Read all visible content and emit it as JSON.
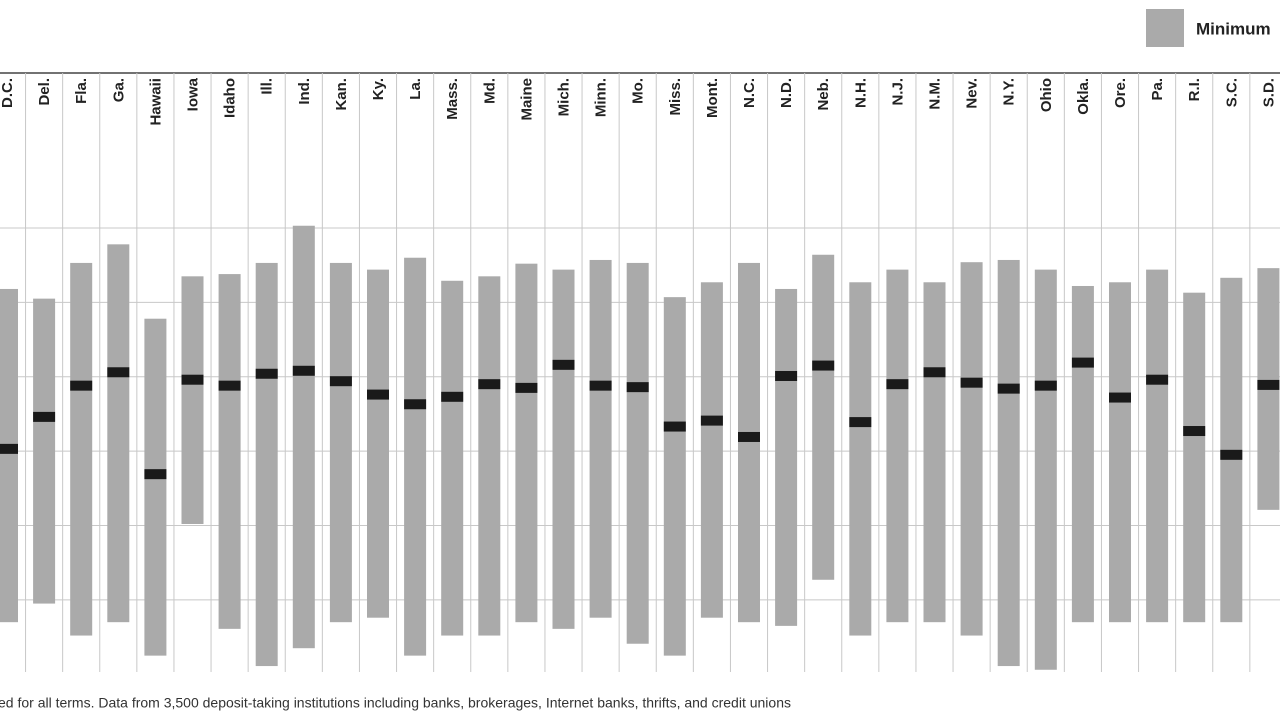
{
  "chart_data": {
    "type": "range",
    "legend_label": "Minimum",
    "footnote": "ed for all terms. Data from 3,500 deposit-taking institutions including banks, brokerages, Internet banks, thrifts, and credit unions",
    "categories": [
      "D.C.",
      "Del.",
      "Fla.",
      "Ga.",
      "Hawaii",
      "Iowa",
      "Idaho",
      "Ill.",
      "Ind.",
      "Kan.",
      "Ky.",
      "La.",
      "Mass.",
      "Md.",
      "Maine",
      "Mich.",
      "Minn.",
      "Mo.",
      "Miss.",
      "Mont.",
      "N.C.",
      "N.D.",
      "Neb.",
      "N.H.",
      "N.J.",
      "N.M.",
      "Nev.",
      "N.Y.",
      "Ohio",
      "Okla.",
      "Ore.",
      "Pa.",
      "R.I.",
      "S.C.",
      "S.D."
    ],
    "low": [
      -0.3,
      -0.05,
      -0.48,
      -0.3,
      -0.75,
      1.02,
      -0.39,
      -0.89,
      -0.65,
      -0.3,
      -0.24,
      -0.75,
      -0.48,
      -0.48,
      -0.3,
      -0.39,
      -0.24,
      -0.59,
      -0.75,
      -0.24,
      -0.3,
      -0.35,
      0.27,
      -0.48,
      -0.3,
      -0.3,
      -0.48,
      -0.89,
      -0.94,
      -0.3,
      -0.3,
      -0.3,
      -0.3,
      -0.3,
      1.21
    ],
    "high": [
      4.18,
      4.05,
      4.53,
      4.78,
      3.78,
      4.35,
      4.38,
      4.53,
      5.03,
      4.53,
      4.44,
      4.6,
      4.29,
      4.35,
      4.52,
      4.44,
      4.57,
      4.53,
      4.07,
      4.27,
      4.53,
      4.18,
      4.64,
      4.27,
      4.44,
      4.27,
      4.54,
      4.57,
      4.44,
      4.22,
      4.27,
      4.44,
      4.13,
      4.33,
      4.46
    ],
    "median": [
      2.03,
      2.46,
      2.88,
      3.06,
      1.69,
      2.96,
      2.88,
      3.04,
      3.08,
      2.94,
      2.76,
      2.63,
      2.73,
      2.9,
      2.85,
      3.16,
      2.88,
      2.86,
      2.33,
      2.41,
      2.19,
      3.01,
      3.15,
      2.39,
      2.9,
      3.06,
      2.92,
      2.84,
      2.88,
      3.19,
      2.72,
      2.96,
      2.27,
      1.95,
      2.89
    ],
    "range_color": "#aaaaaa",
    "median_color": "#1a1a1a",
    "ylim": [
      -0.97,
      5.68
    ],
    "ygrid": [
      0,
      1,
      2,
      3,
      4,
      5
    ],
    "grid": true
  }
}
